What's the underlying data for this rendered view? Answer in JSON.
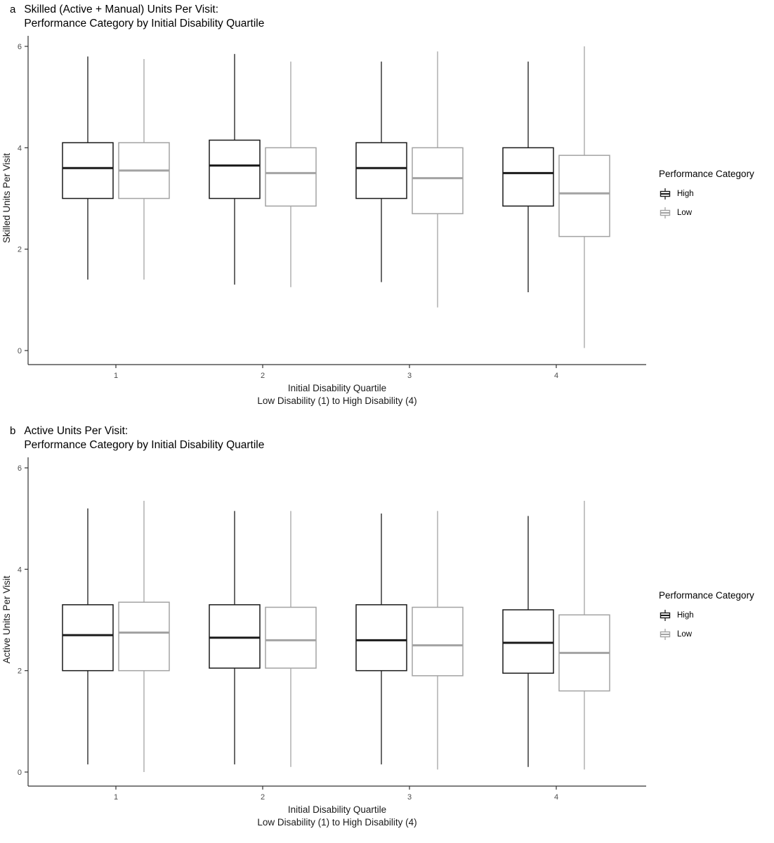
{
  "page": {
    "background": "#ffffff"
  },
  "colors": {
    "high": "#1a1a1a",
    "low": "#a3a3a3",
    "axis_line": "#333333",
    "axis_text": "#4d4d4d",
    "caption_text": "#1a1a1a",
    "box_fill": "#ffffff"
  },
  "legend": {
    "title": "Performance Category",
    "items": [
      {
        "label": "High",
        "color_key": "high"
      },
      {
        "label": "Low",
        "color_key": "low"
      }
    ]
  },
  "chart_data": [
    {
      "type": "boxplot",
      "panel_label": "a",
      "title_line1": "Skilled (Active + Manual) Units Per Visit:",
      "title_line2": "Performance Category by Initial Disability Quartile",
      "ylabel": "Skilled Units Per Visit",
      "xlabel_line1": "Initial Disability Quartile",
      "xlabel_line2": "Low Disability (1) to High Disability (4)",
      "categories": [
        "1",
        "2",
        "3",
        "4"
      ],
      "ylim": [
        0,
        6
      ],
      "yticks": [
        0,
        2,
        4,
        6
      ],
      "grid": false,
      "legend_position": "right",
      "series": [
        {
          "name": "High",
          "color_key": "high",
          "boxes": [
            {
              "whisker_low": 1.4,
              "q1": 3.0,
              "median": 3.6,
              "q3": 4.1,
              "whisker_high": 5.8
            },
            {
              "whisker_low": 1.3,
              "q1": 3.0,
              "median": 3.65,
              "q3": 4.15,
              "whisker_high": 5.85
            },
            {
              "whisker_low": 1.35,
              "q1": 3.0,
              "median": 3.6,
              "q3": 4.1,
              "whisker_high": 5.7
            },
            {
              "whisker_low": 1.15,
              "q1": 2.85,
              "median": 3.5,
              "q3": 4.0,
              "whisker_high": 5.7
            }
          ]
        },
        {
          "name": "Low",
          "color_key": "low",
          "boxes": [
            {
              "whisker_low": 1.4,
              "q1": 3.0,
              "median": 3.55,
              "q3": 4.1,
              "whisker_high": 5.75
            },
            {
              "whisker_low": 1.25,
              "q1": 2.85,
              "median": 3.5,
              "q3": 4.0,
              "whisker_high": 5.7
            },
            {
              "whisker_low": 0.85,
              "q1": 2.7,
              "median": 3.4,
              "q3": 4.0,
              "whisker_high": 5.9
            },
            {
              "whisker_low": 0.05,
              "q1": 2.25,
              "median": 3.1,
              "q3": 3.85,
              "whisker_high": 6.0
            }
          ]
        }
      ]
    },
    {
      "type": "boxplot",
      "panel_label": "b",
      "title_line1": "Active Units Per Visit:",
      "title_line2": "Performance Category by Initial Disability Quartile",
      "ylabel": "Active Units Per Visit",
      "xlabel_line1": "Initial Disability Quartile",
      "xlabel_line2": "Low Disability (1) to High Disability (4)",
      "categories": [
        "1",
        "2",
        "3",
        "4"
      ],
      "ylim": [
        0,
        6
      ],
      "yticks": [
        0,
        2,
        4,
        6
      ],
      "grid": false,
      "legend_position": "right",
      "series": [
        {
          "name": "High",
          "color_key": "high",
          "boxes": [
            {
              "whisker_low": 0.15,
              "q1": 2.0,
              "median": 2.7,
              "q3": 3.3,
              "whisker_high": 5.2
            },
            {
              "whisker_low": 0.15,
              "q1": 2.05,
              "median": 2.65,
              "q3": 3.3,
              "whisker_high": 5.15
            },
            {
              "whisker_low": 0.15,
              "q1": 2.0,
              "median": 2.6,
              "q3": 3.3,
              "whisker_high": 5.1
            },
            {
              "whisker_low": 0.1,
              "q1": 1.95,
              "median": 2.55,
              "q3": 3.2,
              "whisker_high": 5.05
            }
          ]
        },
        {
          "name": "Low",
          "color_key": "low",
          "boxes": [
            {
              "whisker_low": 0.0,
              "q1": 2.0,
              "median": 2.75,
              "q3": 3.35,
              "whisker_high": 5.35
            },
            {
              "whisker_low": 0.1,
              "q1": 2.05,
              "median": 2.6,
              "q3": 3.25,
              "whisker_high": 5.15
            },
            {
              "whisker_low": 0.05,
              "q1": 1.9,
              "median": 2.5,
              "q3": 3.25,
              "whisker_high": 5.15
            },
            {
              "whisker_low": 0.05,
              "q1": 1.6,
              "median": 2.35,
              "q3": 3.1,
              "whisker_high": 5.35
            }
          ]
        }
      ]
    }
  ]
}
